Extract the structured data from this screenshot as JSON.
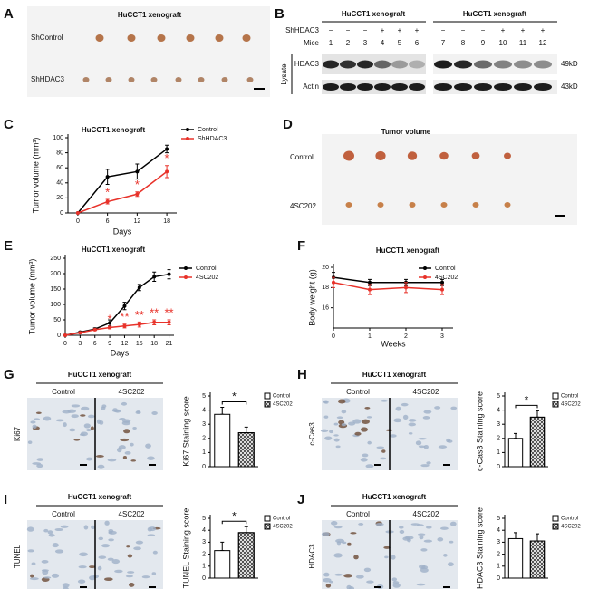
{
  "panel_labels": [
    "A",
    "B",
    "C",
    "D",
    "E",
    "F",
    "G",
    "H",
    "I",
    "J"
  ],
  "panel_a": {
    "title": "HuCCT1 xenograft",
    "rows": [
      "ShControl",
      "ShHDAC3"
    ]
  },
  "panel_b": {
    "groups": [
      "HuCCT1 xenograft",
      "HuCCT1 xenograft"
    ],
    "treatment_label": "ShHDAC3",
    "treatment": [
      "−",
      "−",
      "−",
      "+",
      "+",
      "+",
      "−",
      "−",
      "−",
      "+",
      "+",
      "+"
    ],
    "mice_label": "Mice",
    "mice": [
      "1",
      "2",
      "3",
      "4",
      "5",
      "6",
      "7",
      "8",
      "9",
      "10",
      "11",
      "12"
    ],
    "side_label": "Lysate",
    "bands": [
      {
        "name": "HDAC3",
        "size": "49kD"
      },
      {
        "name": "Actin",
        "size": "43kD"
      }
    ]
  },
  "panel_d": {
    "title": "Tumor volume",
    "rows": [
      "Control",
      "4SC202"
    ]
  },
  "micrographs": [
    {
      "title": "HuCCT1 xenograft",
      "groups": [
        "Control",
        "4SC202"
      ],
      "stain": "Ki67"
    },
    {
      "title": "HuCCT1 xenograft",
      "groups": [
        "Control",
        "4SC202"
      ],
      "stain": "c-Cas3"
    },
    {
      "title": "HuCCT1 xenograft",
      "groups": [
        "Control",
        "4SC202"
      ],
      "stain": "TUNEL"
    },
    {
      "title": "HuCCT1 xenograft",
      "groups": [
        "Control",
        "4SC202"
      ],
      "stain": "HDAC3"
    }
  ],
  "chart_data": [
    {
      "type": "line",
      "title": "HuCCT1 xenograft",
      "xlabel": "Days",
      "ylabel": "Tumor volume (mm³)",
      "x": [
        0,
        6,
        12,
        18
      ],
      "xlim": [
        -2,
        20
      ],
      "xticks": [
        0,
        6,
        12,
        18
      ],
      "ylim": [
        0,
        100
      ],
      "yticks": [
        0,
        20,
        40,
        60,
        80,
        100
      ],
      "series": [
        {
          "name": "Control",
          "color": "#000000",
          "values": [
            0,
            48,
            55,
            85
          ],
          "errors": [
            0,
            10,
            10,
            5
          ]
        },
        {
          "name": "ShHDAC3",
          "color": "#e8322a",
          "values": [
            0,
            15,
            25,
            55
          ],
          "errors": [
            0,
            3,
            3,
            8
          ]
        }
      ],
      "significance": [
        null,
        "*",
        "*",
        "*"
      ],
      "significance_color": "#e8322a"
    },
    {
      "type": "line",
      "title": "HuCCT1 xenograft",
      "xlabel": "Days",
      "ylabel": "Tumor volume (mm³)",
      "x": [
        0,
        3,
        6,
        9,
        12,
        15,
        18,
        21
      ],
      "xlim": [
        0,
        22
      ],
      "xticks": [
        0,
        3,
        6,
        9,
        12,
        15,
        18,
        21
      ],
      "ylim": [
        0,
        250
      ],
      "yticks": [
        0,
        50,
        100,
        150,
        200,
        250
      ],
      "series": [
        {
          "name": "Control",
          "color": "#000000",
          "values": [
            0,
            10,
            20,
            40,
            95,
            155,
            190,
            198
          ],
          "errors": [
            0,
            2,
            4,
            10,
            12,
            10,
            15,
            15
          ]
        },
        {
          "name": "4SC202",
          "color": "#e8322a",
          "values": [
            0,
            8,
            18,
            25,
            30,
            35,
            42,
            42
          ],
          "errors": [
            0,
            2,
            3,
            4,
            6,
            8,
            8,
            8
          ]
        }
      ],
      "significance": [
        null,
        null,
        null,
        "*",
        "**",
        "**",
        "**",
        "**"
      ],
      "significance_color": "#e8322a"
    },
    {
      "type": "line",
      "title": "HuCCT1 xenograft",
      "xlabel": "Weeks",
      "ylabel": "Body weight (g)",
      "x": [
        0,
        1,
        2,
        3
      ],
      "xlim": [
        0,
        3.3
      ],
      "xticks": [
        0,
        1,
        2,
        3
      ],
      "ylim": [
        14,
        20
      ],
      "yticks": [
        16,
        18,
        20
      ],
      "series": [
        {
          "name": "Control",
          "color": "#000000",
          "values": [
            19,
            18.5,
            18.5,
            18.5
          ],
          "errors": [
            0.5,
            0.3,
            0.3,
            0.3
          ]
        },
        {
          "name": "4SC202",
          "color": "#e8322a",
          "values": [
            18.5,
            17.8,
            18,
            17.8
          ],
          "errors": [
            0.5,
            0.5,
            0.5,
            0.5
          ]
        }
      ]
    },
    {
      "type": "bar",
      "ylabel": "Ki67 Staining score",
      "ylim": [
        0,
        5
      ],
      "yticks": [
        0,
        1,
        2,
        3,
        4,
        5
      ],
      "series": [
        {
          "name": "Control",
          "color": "#ffffff",
          "values": [
            3.7
          ],
          "errors": [
            0.5
          ]
        },
        {
          "name": "4SC202",
          "color": "#ffffff",
          "hatch": true,
          "values": [
            2.4
          ],
          "errors": [
            0.4
          ]
        }
      ],
      "significance": "*"
    },
    {
      "type": "bar",
      "ylabel": "c-Cas3 Staining score",
      "ylim": [
        0,
        5
      ],
      "yticks": [
        0,
        1,
        2,
        3,
        4,
        5
      ],
      "series": [
        {
          "name": "Control",
          "color": "#ffffff",
          "values": [
            2.0
          ],
          "errors": [
            0.35
          ]
        },
        {
          "name": "4SC202",
          "color": "#ffffff",
          "hatch": true,
          "values": [
            3.5
          ],
          "errors": [
            0.45
          ]
        }
      ],
      "significance": "*"
    },
    {
      "type": "bar",
      "ylabel": "TUNEL Staining score",
      "ylim": [
        0,
        5
      ],
      "yticks": [
        0,
        1,
        2,
        3,
        4,
        5
      ],
      "series": [
        {
          "name": "Control",
          "color": "#ffffff",
          "values": [
            2.3
          ],
          "errors": [
            0.7
          ]
        },
        {
          "name": "4SC202",
          "color": "#ffffff",
          "hatch": true,
          "values": [
            3.8
          ],
          "errors": [
            0.5
          ]
        }
      ],
      "significance": "*"
    },
    {
      "type": "bar",
      "ylabel": "HDAC3 Staining score",
      "ylim": [
        0,
        5
      ],
      "yticks": [
        0,
        1,
        2,
        3,
        4,
        5
      ],
      "series": [
        {
          "name": "Control",
          "color": "#ffffff",
          "values": [
            3.3
          ],
          "errors": [
            0.5
          ]
        },
        {
          "name": "4SC202",
          "color": "#ffffff",
          "hatch": true,
          "values": [
            3.1
          ],
          "errors": [
            0.6
          ]
        }
      ]
    }
  ]
}
